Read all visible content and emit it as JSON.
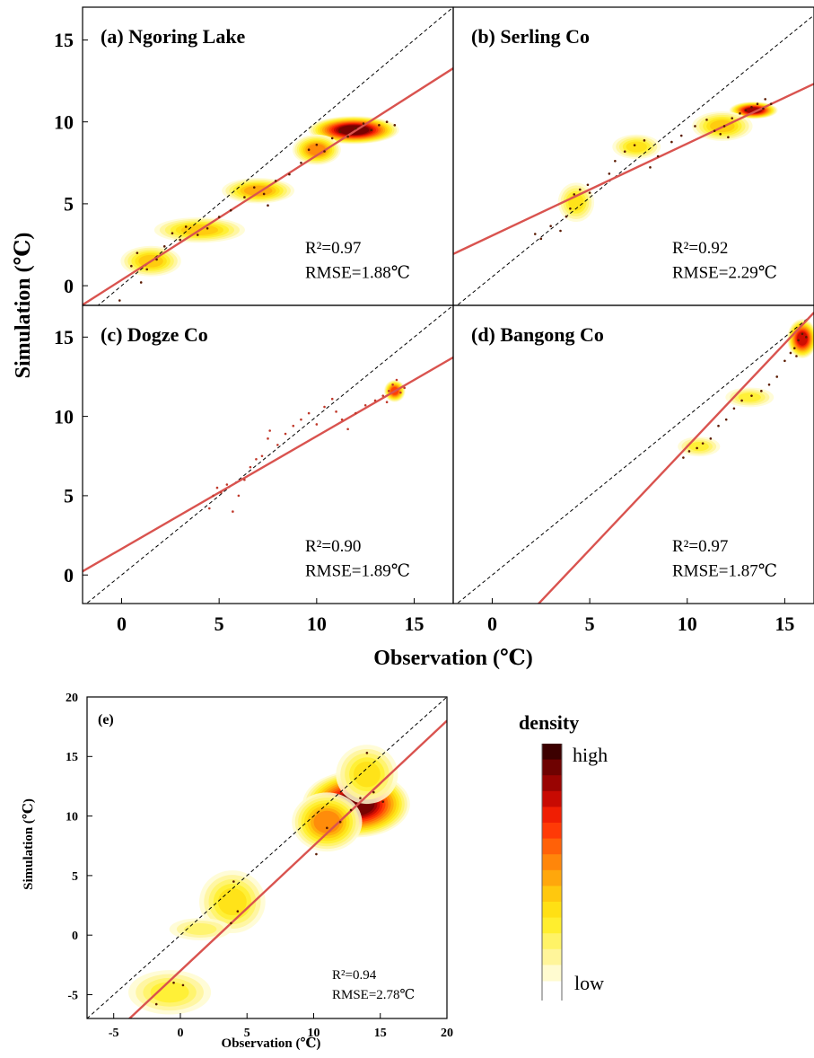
{
  "colors": {
    "fit_line": "#d9534f",
    "identity_line": "#000000",
    "density_scale": [
      "#fffbd0",
      "#fff59a",
      "#fff366",
      "#ffee2e",
      "#ffe014",
      "#ffc80e",
      "#ffa70c",
      "#ff860a",
      "#ff6108",
      "#ff3a06",
      "#f01e03",
      "#c80a02",
      "#990402",
      "#6e0201",
      "#3c0000"
    ]
  },
  "figure": {
    "top_ylabel": "Simulation (℃)",
    "top_xlabel": "Observation (℃)",
    "bottom_ylabel": "Simulation (℃)",
    "bottom_xlabel": "Observation (℃)"
  },
  "legend": {
    "title": "density",
    "high_label": "high",
    "low_label": "low"
  },
  "chart_data": [
    {
      "type": "scatter",
      "title": "(a) Ngoring Lake",
      "xlim": [
        -2,
        17
      ],
      "ylim": [
        -1.2,
        17
      ],
      "xticks": [],
      "yticks": [
        0,
        5,
        10,
        15
      ],
      "r2": "R²=0.97",
      "rmse": "RMSE=1.88℃",
      "fit": {
        "slope": 0.76,
        "intercept": 0.35
      },
      "points": [
        [
          0.5,
          1.2
        ],
        [
          0.8,
          2.0
        ],
        [
          1.0,
          0.2
        ],
        [
          1.3,
          1.0
        ],
        [
          1.8,
          1.6
        ],
        [
          2.2,
          2.4
        ],
        [
          2.6,
          3.2
        ],
        [
          3.0,
          2.8
        ],
        [
          3.3,
          3.6
        ],
        [
          3.9,
          3.1
        ],
        [
          4.4,
          3.5
        ],
        [
          5.0,
          4.2
        ],
        [
          5.6,
          4.6
        ],
        [
          6.3,
          5.4
        ],
        [
          6.8,
          6.0
        ],
        [
          7.3,
          5.6
        ],
        [
          7.5,
          4.9
        ],
        [
          7.9,
          6.4
        ],
        [
          8.6,
          6.8
        ],
        [
          9.2,
          7.5
        ],
        [
          9.6,
          8.3
        ],
        [
          10.0,
          8.6
        ],
        [
          10.4,
          8.2
        ],
        [
          10.8,
          9.0
        ],
        [
          11.2,
          9.4
        ],
        [
          11.6,
          9.1
        ],
        [
          12.0,
          9.6
        ],
        [
          12.4,
          9.9
        ],
        [
          12.8,
          9.5
        ],
        [
          13.2,
          9.8
        ],
        [
          13.6,
          10.0
        ],
        [
          14.0,
          9.8
        ],
        [
          -0.1,
          -0.9
        ]
      ],
      "density": [
        [
          11.9,
          9.5,
          1.5,
          0.55,
          1.0
        ],
        [
          7.0,
          5.8,
          1.2,
          0.5,
          0.5
        ],
        [
          4.0,
          3.4,
          1.5,
          0.5,
          0.45
        ],
        [
          1.5,
          1.5,
          1.0,
          0.6,
          0.45
        ],
        [
          10.0,
          8.3,
          0.8,
          0.6,
          0.6
        ]
      ]
    },
    {
      "type": "scatter",
      "title": "(b) Serling Co",
      "xlim": [
        -2,
        16.5
      ],
      "ylim": [
        -1.8,
        17
      ],
      "xticks": [],
      "yticks": [],
      "r2": "R²=0.92",
      "rmse": "RMSE=2.29℃",
      "fit": {
        "slope": 0.58,
        "intercept": 2.6
      },
      "points": [
        [
          2.2,
          2.7
        ],
        [
          2.5,
          2.4
        ],
        [
          3.0,
          3.2
        ],
        [
          3.5,
          2.9
        ],
        [
          3.8,
          3.8
        ],
        [
          4.0,
          4.3
        ],
        [
          4.2,
          5.2
        ],
        [
          4.5,
          5.5
        ],
        [
          4.9,
          5.8
        ],
        [
          5.0,
          5.3
        ],
        [
          6.0,
          6.5
        ],
        [
          6.3,
          7.3
        ],
        [
          6.8,
          7.9
        ],
        [
          7.3,
          8.3
        ],
        [
          7.8,
          8.6
        ],
        [
          8.1,
          6.9
        ],
        [
          8.5,
          7.6
        ],
        [
          9.2,
          8.5
        ],
        [
          9.7,
          8.9
        ],
        [
          10.4,
          9.5
        ],
        [
          11.0,
          9.9
        ],
        [
          11.4,
          9.2
        ],
        [
          11.9,
          9.5
        ],
        [
          12.3,
          10.0
        ],
        [
          12.7,
          10.3
        ],
        [
          13.0,
          10.5
        ],
        [
          13.3,
          10.7
        ],
        [
          13.6,
          10.9
        ],
        [
          13.9,
          10.6
        ],
        [
          14.3,
          10.9
        ],
        [
          12.1,
          8.8
        ],
        [
          11.7,
          9.0
        ],
        [
          14.0,
          11.2
        ]
      ],
      "density": [
        [
          13.4,
          10.5,
          0.8,
          0.35,
          0.9
        ],
        [
          11.8,
          9.5,
          1.0,
          0.6,
          0.4
        ],
        [
          4.3,
          4.7,
          0.6,
          0.8,
          0.35
        ],
        [
          7.4,
          8.2,
          0.8,
          0.5,
          0.35
        ]
      ]
    },
    {
      "type": "scatter",
      "title": "(c) Dogze Co",
      "xlim": [
        -2,
        17
      ],
      "ylim": [
        -1.8,
        17
      ],
      "xticks": [
        0,
        5,
        10,
        15
      ],
      "yticks": [
        0,
        5,
        10,
        15
      ],
      "r2": "R²=0.90",
      "rmse": "RMSE=1.89℃",
      "fit": {
        "slope": 0.71,
        "intercept": 1.65
      },
      "points": [
        [
          4.5,
          4.2
        ],
        [
          4.7,
          5.0
        ],
        [
          4.9,
          5.5
        ],
        [
          5.1,
          5.2
        ],
        [
          5.4,
          5.7
        ],
        [
          5.7,
          4.0
        ],
        [
          6.0,
          5.0
        ],
        [
          6.3,
          6.0
        ],
        [
          6.6,
          6.8
        ],
        [
          6.9,
          7.3
        ],
        [
          7.2,
          7.5
        ],
        [
          7.5,
          8.6
        ],
        [
          7.6,
          9.1
        ],
        [
          8.0,
          8.2
        ],
        [
          8.4,
          8.9
        ],
        [
          8.8,
          9.4
        ],
        [
          9.2,
          9.8
        ],
        [
          9.6,
          10.2
        ],
        [
          10.0,
          9.5
        ],
        [
          10.4,
          10.6
        ],
        [
          10.8,
          11.1
        ],
        [
          11.0,
          10.3
        ],
        [
          11.3,
          9.8
        ],
        [
          11.6,
          9.2
        ],
        [
          12.0,
          10.2
        ],
        [
          12.5,
          10.7
        ],
        [
          13.0,
          11.0
        ],
        [
          13.4,
          11.3
        ],
        [
          13.7,
          11.6
        ],
        [
          13.9,
          12.0
        ],
        [
          14.1,
          12.3
        ],
        [
          14.3,
          11.5
        ],
        [
          14.5,
          11.8
        ],
        [
          13.6,
          10.9
        ]
      ],
      "density": [
        [
          14.0,
          11.6,
          0.35,
          0.45,
          0.7
        ]
      ]
    },
    {
      "type": "scatter",
      "title": "(d) Bangong Co",
      "xlim": [
        -2,
        16.5
      ],
      "ylim": [
        -1.8,
        17
      ],
      "xticks": [
        0,
        5,
        10,
        15
      ],
      "yticks": [],
      "r2": "R²=0.97",
      "rmse": "RMSE=1.87℃",
      "fit": {
        "slope": 1.3,
        "intercept": -4.9
      },
      "points": [
        [
          9.8,
          7.4
        ],
        [
          10.1,
          7.8
        ],
        [
          10.5,
          8.0
        ],
        [
          10.8,
          8.3
        ],
        [
          11.2,
          8.6
        ],
        [
          11.6,
          9.4
        ],
        [
          12.0,
          9.8
        ],
        [
          12.4,
          10.5
        ],
        [
          12.8,
          11.0
        ],
        [
          13.3,
          11.3
        ],
        [
          13.8,
          11.6
        ],
        [
          14.2,
          12.0
        ],
        [
          14.6,
          12.5
        ],
        [
          15.0,
          13.5
        ],
        [
          15.3,
          14.0
        ],
        [
          15.5,
          14.3
        ],
        [
          15.7,
          14.8
        ],
        [
          15.9,
          15.2
        ],
        [
          16.1,
          15.0
        ],
        [
          15.6,
          13.8
        ]
      ],
      "density": [
        [
          15.9,
          14.9,
          0.5,
          0.8,
          0.85
        ],
        [
          13.2,
          11.2,
          0.8,
          0.4,
          0.3
        ],
        [
          10.6,
          8.1,
          0.7,
          0.4,
          0.25
        ]
      ]
    },
    {
      "type": "scatter",
      "title": "(e)",
      "xlim": [
        -7,
        20
      ],
      "ylim": [
        -7,
        20
      ],
      "xticks": [
        -5,
        0,
        5,
        10,
        15,
        20
      ],
      "yticks": [
        -5,
        0,
        5,
        10,
        15,
        20
      ],
      "xlabel": "Observation (℃)",
      "ylabel": "Simulation (℃)",
      "r2": "R²=0.94",
      "rmse": "RMSE=2.78℃",
      "fit": {
        "slope": 1.05,
        "intercept": -3.0
      },
      "points": [
        [
          13.5,
          11.5
        ],
        [
          14.0,
          15.3
        ],
        [
          10.2,
          6.8
        ],
        [
          4.0,
          4.5
        ],
        [
          4.3,
          2.0
        ],
        [
          0.2,
          -4.2
        ],
        [
          -1.8,
          -5.8
        ],
        [
          3.8,
          1.0
        ],
        [
          12.0,
          9.5
        ],
        [
          14.5,
          12.0
        ],
        [
          11.0,
          9.0
        ],
        [
          12.8,
          10.5
        ],
        [
          15.2,
          11.2
        ],
        [
          -0.5,
          -4.0
        ]
      ],
      "density": [
        [
          13.2,
          11.0,
          2.6,
          1.8,
          1.0
        ],
        [
          11.0,
          9.5,
          1.7,
          1.6,
          0.6
        ],
        [
          14.0,
          13.5,
          1.5,
          1.6,
          0.35
        ],
        [
          3.9,
          2.8,
          1.6,
          1.7,
          0.35
        ],
        [
          1.5,
          0.5,
          1.5,
          0.6,
          0.2
        ],
        [
          -0.8,
          -4.8,
          2.0,
          1.2,
          0.3
        ]
      ]
    }
  ]
}
